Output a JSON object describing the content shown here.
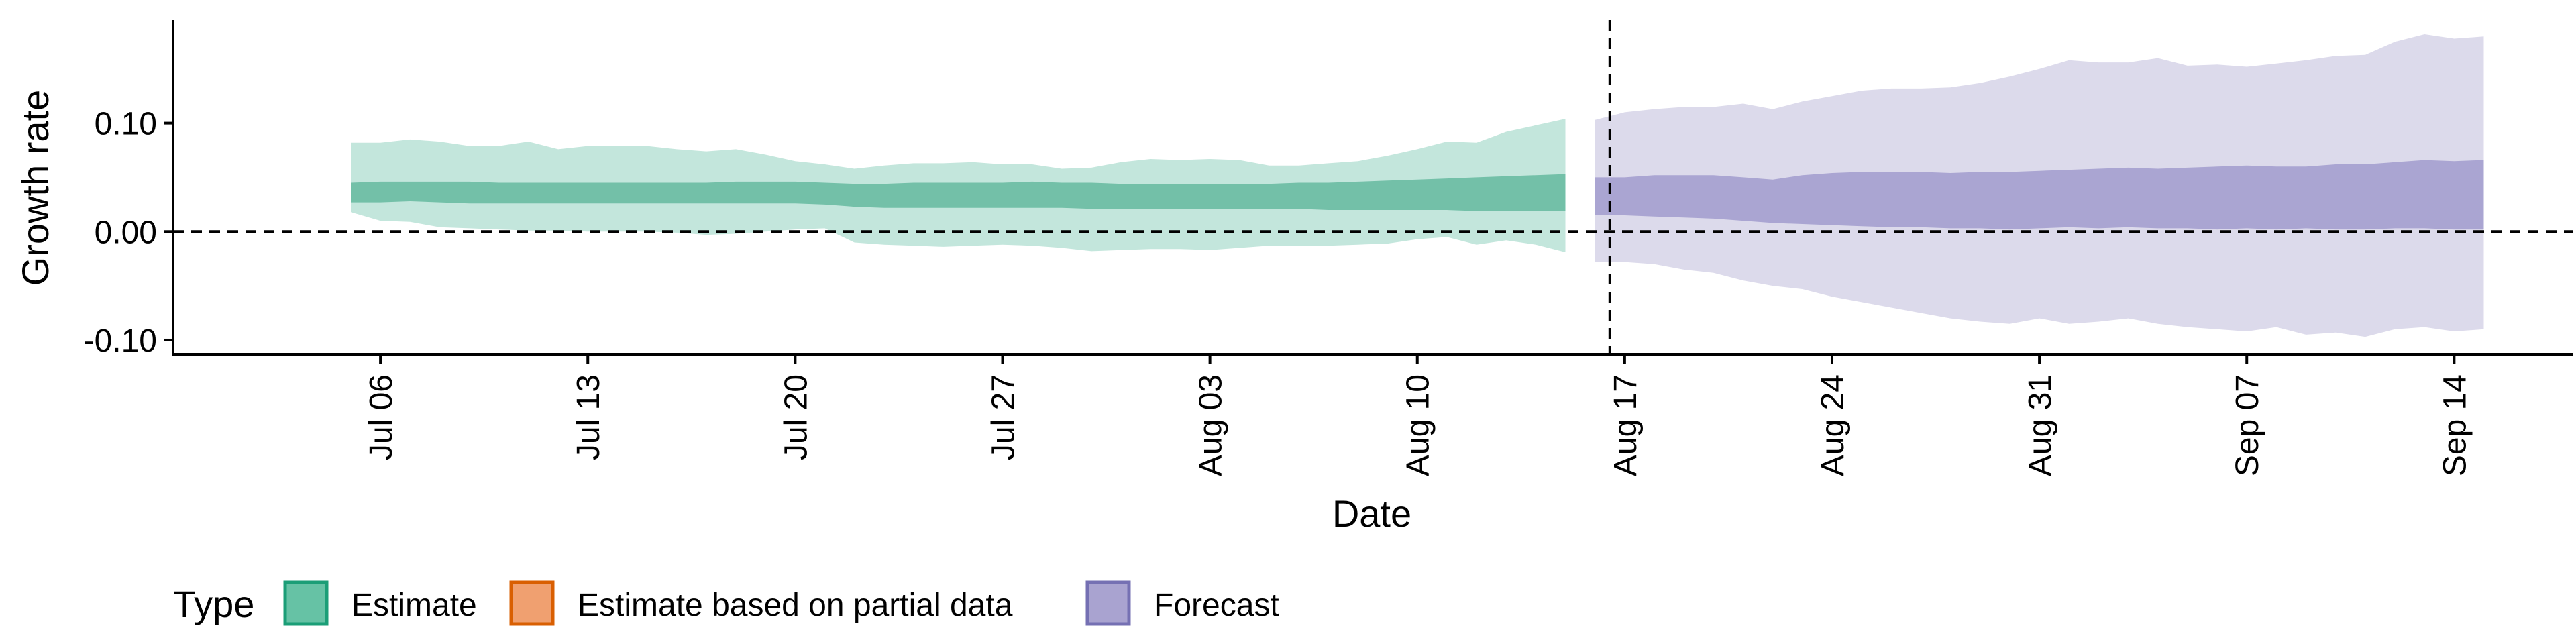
{
  "chart_data": {
    "type": "area",
    "xlabel": "Date",
    "ylabel": "Growth rate",
    "x_tick_labels": [
      "Jul 06",
      "Jul 13",
      "Jul 20",
      "Jul 27",
      "Aug 03",
      "Aug 10",
      "Aug 17",
      "Aug 24",
      "Aug 31",
      "Sep 07",
      "Sep 14"
    ],
    "y_tick_labels": [
      "-0.10",
      "0.00",
      "0.10"
    ],
    "y_ticks": [
      -0.1,
      0.0,
      0.1
    ],
    "ylim": [
      -0.113,
      0.195
    ],
    "xlim": [
      "2020-06-29",
      "2020-09-18"
    ],
    "grid": false,
    "reference_lines": {
      "horizontal_y": 0.0,
      "vertical_date": "2020-08-16"
    },
    "legend": {
      "title": "Type",
      "position": "bottom",
      "entries": [
        {
          "label": "Estimate",
          "fill": "#66c2a5",
          "stroke": "#1b9e77"
        },
        {
          "label": "Estimate based on partial data",
          "fill": "#f0a070",
          "stroke": "#d95f02"
        },
        {
          "label": "Forecast",
          "fill": "#a9a3d0",
          "stroke": "#7570b3"
        }
      ]
    },
    "series": [
      {
        "name": "Estimate",
        "colors": {
          "outer": "#c3e6dc",
          "inner": "#73c0a8"
        },
        "dates": [
          "2020-07-05",
          "2020-07-06",
          "2020-07-07",
          "2020-07-08",
          "2020-07-09",
          "2020-07-10",
          "2020-07-11",
          "2020-07-12",
          "2020-07-13",
          "2020-07-14",
          "2020-07-15",
          "2020-07-16",
          "2020-07-17",
          "2020-07-18",
          "2020-07-19",
          "2020-07-20",
          "2020-07-21",
          "2020-07-22",
          "2020-07-23",
          "2020-07-24",
          "2020-07-25",
          "2020-07-26",
          "2020-07-27",
          "2020-07-28",
          "2020-07-29",
          "2020-07-30",
          "2020-07-31",
          "2020-08-01",
          "2020-08-02",
          "2020-08-03",
          "2020-08-04",
          "2020-08-05",
          "2020-08-06",
          "2020-08-07",
          "2020-08-08",
          "2020-08-09",
          "2020-08-10",
          "2020-08-11",
          "2020-08-12",
          "2020-08-13",
          "2020-08-14",
          "2020-08-15"
        ],
        "upper_90": [
          0.082,
          0.082,
          0.085,
          0.083,
          0.079,
          0.079,
          0.083,
          0.076,
          0.079,
          0.079,
          0.079,
          0.076,
          0.074,
          0.076,
          0.071,
          0.065,
          0.062,
          0.058,
          0.061,
          0.063,
          0.063,
          0.064,
          0.062,
          0.062,
          0.058,
          0.059,
          0.064,
          0.067,
          0.066,
          0.067,
          0.066,
          0.061,
          0.061,
          0.063,
          0.065,
          0.07,
          0.076,
          0.083,
          0.082,
          0.092,
          0.098,
          0.104
        ],
        "lower_90": [
          0.018,
          0.01,
          0.009,
          0.004,
          0.003,
          0.002,
          0.001,
          0.001,
          0.0,
          0.0,
          0.0,
          -0.001,
          -0.003,
          -0.002,
          0.0,
          0.002,
          0.003,
          -0.01,
          -0.012,
          -0.013,
          -0.014,
          -0.013,
          -0.012,
          -0.013,
          -0.015,
          -0.018,
          -0.017,
          -0.016,
          -0.016,
          -0.017,
          -0.015,
          -0.013,
          -0.013,
          -0.013,
          -0.012,
          -0.011,
          -0.007,
          -0.005,
          -0.012,
          -0.008,
          -0.012,
          -0.019
        ],
        "upper_50": [
          0.045,
          0.046,
          0.046,
          0.046,
          0.046,
          0.045,
          0.045,
          0.045,
          0.045,
          0.045,
          0.045,
          0.045,
          0.045,
          0.046,
          0.046,
          0.046,
          0.045,
          0.044,
          0.044,
          0.045,
          0.045,
          0.045,
          0.045,
          0.046,
          0.045,
          0.045,
          0.044,
          0.044,
          0.044,
          0.044,
          0.044,
          0.044,
          0.045,
          0.045,
          0.046,
          0.047,
          0.048,
          0.049,
          0.05,
          0.051,
          0.052,
          0.053
        ],
        "lower_50": [
          0.027,
          0.027,
          0.028,
          0.027,
          0.026,
          0.026,
          0.026,
          0.026,
          0.026,
          0.026,
          0.026,
          0.026,
          0.026,
          0.026,
          0.026,
          0.026,
          0.025,
          0.023,
          0.022,
          0.022,
          0.022,
          0.022,
          0.022,
          0.022,
          0.022,
          0.021,
          0.021,
          0.021,
          0.021,
          0.021,
          0.021,
          0.021,
          0.021,
          0.02,
          0.02,
          0.02,
          0.02,
          0.02,
          0.019,
          0.019,
          0.019,
          0.019
        ]
      },
      {
        "name": "Forecast",
        "colors": {
          "outer": "#dcdaeb",
          "inner": "#aaa5d2"
        },
        "dates": [
          "2020-08-16",
          "2020-08-17",
          "2020-08-18",
          "2020-08-19",
          "2020-08-20",
          "2020-08-21",
          "2020-08-22",
          "2020-08-23",
          "2020-08-24",
          "2020-08-25",
          "2020-08-26",
          "2020-08-27",
          "2020-08-28",
          "2020-08-29",
          "2020-08-30",
          "2020-08-31",
          "2020-09-01",
          "2020-09-02",
          "2020-09-03",
          "2020-09-04",
          "2020-09-05",
          "2020-09-06",
          "2020-09-07",
          "2020-09-08",
          "2020-09-09",
          "2020-09-10",
          "2020-09-11",
          "2020-09-12",
          "2020-09-13",
          "2020-09-14",
          "2020-09-15"
        ],
        "upper_90": [
          0.103,
          0.11,
          0.113,
          0.115,
          0.115,
          0.118,
          0.113,
          0.12,
          0.125,
          0.13,
          0.132,
          0.132,
          0.133,
          0.137,
          0.143,
          0.15,
          0.158,
          0.156,
          0.156,
          0.16,
          0.153,
          0.154,
          0.152,
          0.155,
          0.158,
          0.162,
          0.163,
          0.175,
          0.182,
          0.178,
          0.18
        ],
        "lower_90": [
          -0.028,
          -0.028,
          -0.03,
          -0.035,
          -0.038,
          -0.045,
          -0.05,
          -0.053,
          -0.06,
          -0.065,
          -0.07,
          -0.075,
          -0.08,
          -0.083,
          -0.085,
          -0.08,
          -0.085,
          -0.083,
          -0.08,
          -0.085,
          -0.088,
          -0.09,
          -0.092,
          -0.088,
          -0.095,
          -0.093,
          -0.097,
          -0.09,
          -0.088,
          -0.092,
          -0.09
        ],
        "upper_50": [
          0.05,
          0.05,
          0.052,
          0.052,
          0.052,
          0.05,
          0.048,
          0.052,
          0.054,
          0.055,
          0.055,
          0.055,
          0.054,
          0.055,
          0.055,
          0.056,
          0.057,
          0.058,
          0.059,
          0.058,
          0.059,
          0.06,
          0.061,
          0.06,
          0.06,
          0.062,
          0.062,
          0.064,
          0.066,
          0.065,
          0.066
        ],
        "lower_50": [
          0.015,
          0.015,
          0.014,
          0.013,
          0.012,
          0.01,
          0.008,
          0.007,
          0.006,
          0.005,
          0.004,
          0.004,
          0.003,
          0.003,
          0.002,
          0.003,
          0.004,
          0.003,
          0.004,
          0.003,
          0.003,
          0.002,
          0.003,
          0.002,
          0.003,
          0.002,
          0.002,
          0.003,
          0.003,
          0.002,
          0.002
        ]
      }
    ]
  }
}
